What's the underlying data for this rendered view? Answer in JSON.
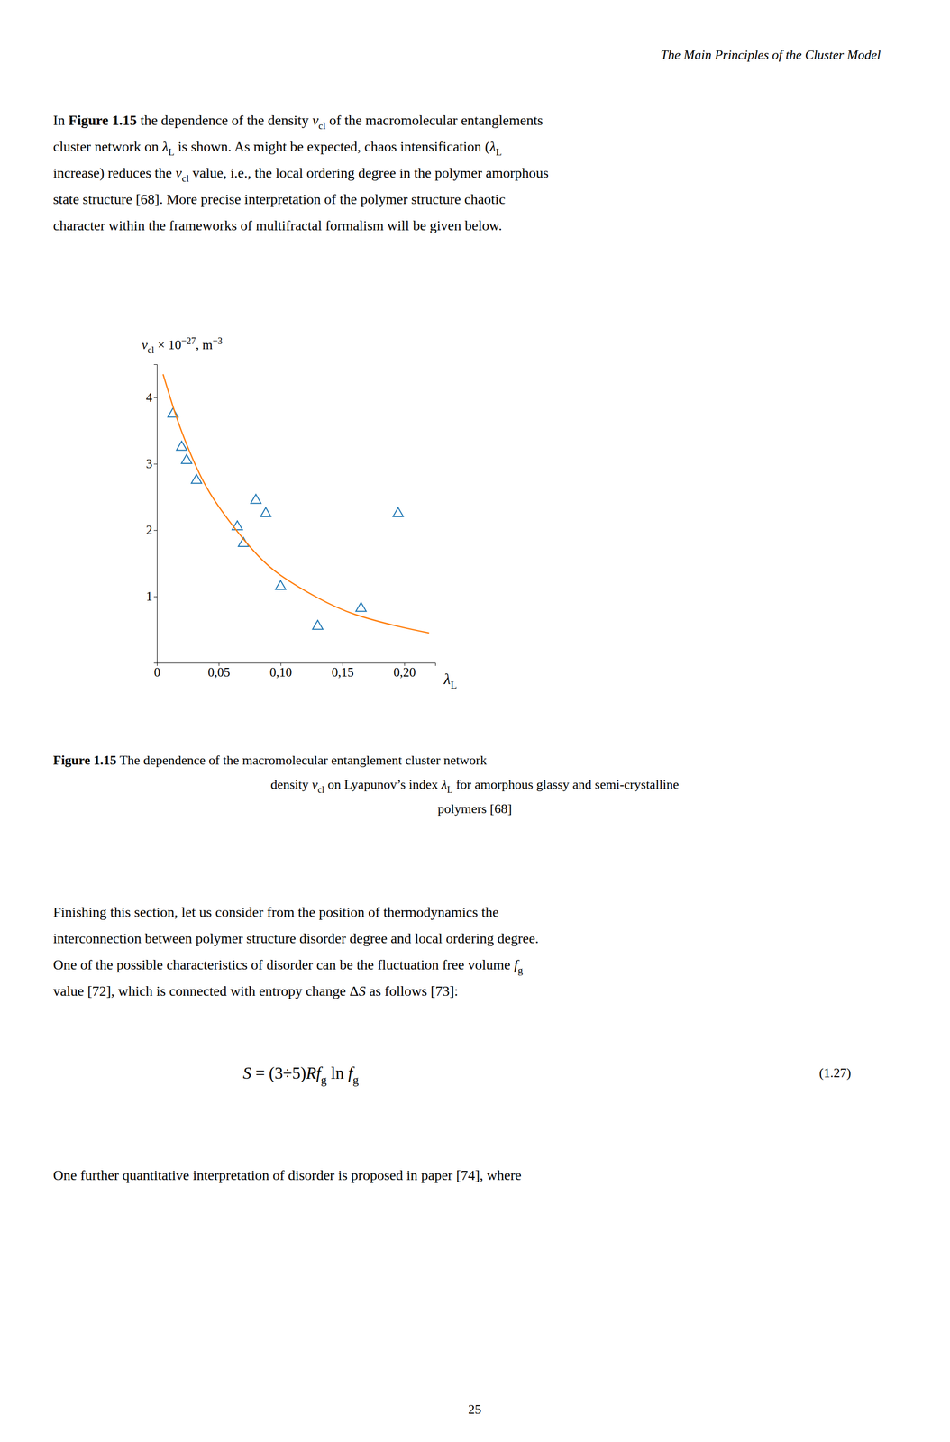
{
  "header": [
    {
      "text": "The Main Principles of the Cluster Model",
      "style": "italic"
    }
  ],
  "intro": [
    [
      {
        "text": "In "
      },
      {
        "text": "Figure 1.15",
        "style": "bold"
      },
      {
        "text": " the dependence of the density "
      },
      {
        "text": "v",
        "style": "italic"
      },
      {
        "text": "cl",
        "style": "sub"
      },
      {
        "text": " of the macromolecular entanglements"
      }
    ],
    [
      {
        "text": "cluster network on "
      },
      {
        "text": "λ",
        "style": "italic"
      },
      {
        "text": "L",
        "style": "sub"
      },
      {
        "text": " is shown. As might be expected, chaos intensification ("
      },
      {
        "text": "λ",
        "style": "italic"
      },
      {
        "text": "L",
        "style": "sub"
      }
    ],
    [
      {
        "text": "increase) reduces the "
      },
      {
        "text": "v",
        "style": "italic"
      },
      {
        "text": "cl",
        "style": "sub"
      },
      {
        "text": " value, i.e., the local ordering degree in the polymer amorphous"
      }
    ],
    [
      {
        "text": "state structure [68]. More precise interpretation of the polymer structure chaotic"
      }
    ],
    [
      {
        "text": "character within the frameworks of multifractal formalism will be given below."
      }
    ]
  ],
  "caption": [
    [
      {
        "text": "Figure 1.15",
        "style": "bold"
      },
      {
        "text": " The dependence of the macromolecular entanglement cluster network"
      }
    ],
    [
      {
        "text": "density "
      },
      {
        "text": "v",
        "style": "italic"
      },
      {
        "text": "cl",
        "style": "sub"
      },
      {
        "text": " on Lyapunov’s index "
      },
      {
        "text": "λ",
        "style": "italic"
      },
      {
        "text": "L",
        "style": "sub"
      },
      {
        "text": " for amorphous glassy and semi-crystalline"
      }
    ],
    [
      {
        "text": "polymers [68]"
      }
    ]
  ],
  "finish": [
    [
      {
        "text": "Finishing this section, let us consider from the position of thermodynamics the"
      }
    ],
    [
      {
        "text": "interconnection between polymer structure disorder degree and local ordering degree."
      }
    ],
    [
      {
        "text": "One of the possible characteristics of disorder can be the fluctuation free volume "
      },
      {
        "text": "f",
        "style": "italic"
      },
      {
        "text": "g",
        "style": "sub"
      }
    ],
    [
      {
        "text": "value [72], which is connected with entropy change Δ"
      },
      {
        "text": "S",
        "style": "italic"
      },
      {
        "text": " as follows [73]:"
      }
    ]
  ],
  "equation": [
    {
      "text": "S",
      "style": "italic"
    },
    {
      "text": " = (3÷5)"
    },
    {
      "text": "Rf",
      "style": "italic"
    },
    {
      "text": "g",
      "style": "sub"
    },
    {
      "text": " ln "
    },
    {
      "text": "f",
      "style": "italic"
    },
    {
      "text": "g",
      "style": "sub"
    }
  ],
  "equation_number": [
    {
      "text": "(1.27)"
    }
  ],
  "final_line": [
    {
      "text": "One further quantitative interpretation of disorder is proposed in paper [74], where"
    }
  ],
  "page_number": [
    {
      "text": "25"
    }
  ],
  "chart_data": {
    "type": "scatter",
    "xlabel": [
      {
        "text": "λ",
        "style": "italic"
      },
      {
        "text": "L",
        "style": "sub"
      }
    ],
    "ylabel": [
      {
        "text": "v",
        "style": "italic"
      },
      {
        "text": "cl",
        "style": "sub"
      },
      {
        "text": " × 10"
      },
      {
        "text": "−27",
        "style": "sup"
      },
      {
        "text": ", m"
      },
      {
        "text": "−3",
        "style": "sup"
      }
    ],
    "xlim": [
      0,
      0.225
    ],
    "ylim": [
      0,
      4.5
    ],
    "xticks": [
      0,
      {
        "value": 0.05,
        "label": "0,05"
      },
      {
        "value": 0.1,
        "label": "0,10"
      },
      {
        "value": 0.15,
        "label": "0,15"
      },
      {
        "value": 0.2,
        "label": "0,20"
      }
    ],
    "yticks": [
      1,
      2,
      3,
      4
    ],
    "grid": false,
    "series": [
      {
        "type": "scatter",
        "marker": "triangle",
        "x": [
          0.013,
          0.02,
          0.024,
          0.032,
          0.065,
          0.07,
          0.08,
          0.088,
          0.1,
          0.13,
          0.165,
          0.195
        ],
        "values": [
          3.75,
          3.25,
          3.05,
          2.75,
          2.05,
          1.8,
          2.45,
          2.25,
          1.15,
          0.55,
          0.82,
          2.25
        ]
      },
      {
        "type": "line",
        "line_style": "solid",
        "x": [
          0.005,
          0.015,
          0.025,
          0.04,
          0.06,
          0.08,
          0.1,
          0.13,
          0.16,
          0.195,
          0.22
        ],
        "values": [
          4.35,
          3.75,
          3.25,
          2.65,
          2.1,
          1.65,
          1.32,
          0.98,
          0.73,
          0.55,
          0.45
        ]
      }
    ]
  }
}
